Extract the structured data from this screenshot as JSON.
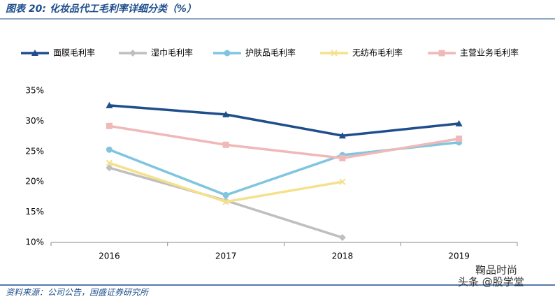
{
  "chart_data": {
    "type": "line",
    "title": "图表 20:  化妆品代工毛利率详细分类（%）",
    "source": "资料来源：公司公告，国盛证券研究所",
    "watermarks": [
      "鞠品时尚",
      "头条 @股学堂"
    ],
    "categories": [
      "2016",
      "2017",
      "2018",
      "2019"
    ],
    "ylim": [
      10,
      35
    ],
    "yticks": [
      {
        "value": 10,
        "label": "10%"
      },
      {
        "value": 15,
        "label": "15%"
      },
      {
        "value": 20,
        "label": "20%"
      },
      {
        "value": 25,
        "label": "25%"
      },
      {
        "value": 30,
        "label": "30%"
      },
      {
        "value": 35,
        "label": "35%"
      }
    ],
    "grid": false,
    "legend": "top",
    "series": [
      {
        "name": "面膜毛利率",
        "color": "#1f4e8c",
        "marker": "triangle",
        "values": [
          32.6,
          31.1,
          27.6,
          29.6
        ]
      },
      {
        "name": "湿巾毛利率",
        "color": "#bfbfbf",
        "marker": "diamond",
        "values": [
          22.3,
          16.9,
          10.8,
          null
        ]
      },
      {
        "name": "护肤品毛利率",
        "color": "#7fc5e0",
        "marker": "circle",
        "values": [
          25.3,
          17.8,
          24.4,
          26.5
        ]
      },
      {
        "name": "无纺布毛利率",
        "color": "#f5e08c",
        "marker": "x",
        "values": [
          23.1,
          16.7,
          20.0,
          null
        ]
      },
      {
        "name": "主营业务毛利率",
        "color": "#f0b8b8",
        "marker": "square",
        "values": [
          29.2,
          26.1,
          23.9,
          27.1
        ]
      }
    ]
  }
}
